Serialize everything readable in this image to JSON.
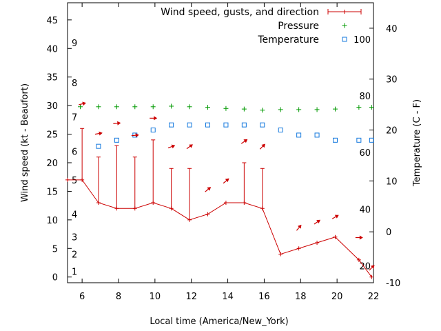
{
  "chart_data": {
    "type": "line",
    "xlabel": "Local time (America/New_York)",
    "ylabel_left": "Wind speed (kt - Beaufort)",
    "ylabel_right": "Temperature (C - F)",
    "xlim": [
      5.2,
      22
    ],
    "ylim_left": [
      -1,
      48
    ],
    "ylim_right": [
      -10,
      45
    ],
    "x_ticks": [
      6,
      8,
      10,
      12,
      14,
      16,
      18,
      20,
      22
    ],
    "y_ticks_left": [
      0,
      5,
      10,
      15,
      20,
      25,
      30,
      35,
      40,
      45
    ],
    "y_ticks_right": [
      -10,
      0,
      10,
      20,
      30,
      40
    ],
    "beaufort_labels": [
      {
        "label": "1",
        "speed": 1
      },
      {
        "label": "2",
        "speed": 4
      },
      {
        "label": "3",
        "speed": 7
      },
      {
        "label": "4",
        "speed": 11
      },
      {
        "label": "5",
        "speed": 17
      },
      {
        "label": "6",
        "speed": 22
      },
      {
        "label": "7",
        "speed": 28
      },
      {
        "label": "8",
        "speed": 34
      },
      {
        "label": "9",
        "speed": 41
      }
    ],
    "fahrenheit_labels": [
      {
        "label": "20",
        "celsius": -6.7
      },
      {
        "label": "40",
        "celsius": 4.4
      },
      {
        "label": "60",
        "celsius": 15.6
      },
      {
        "label": "80",
        "celsius": 26.7
      },
      {
        "label": "100",
        "celsius": 37.8
      }
    ],
    "legend": {
      "placement": "top-right",
      "wind": "Wind speed, gusts, and direction",
      "pressure": "Pressure",
      "temperature": "Temperature"
    },
    "colors": {
      "wind": "#cc0000",
      "pressure": "#009900",
      "temperature": "#1177dd"
    },
    "series": [
      {
        "name": "Wind speed, gusts, and direction",
        "x": [
          5.2,
          6,
          6.9,
          7.9,
          8.9,
          9.9,
          10.9,
          11.9,
          12.9,
          13.9,
          14.9,
          15.9,
          16.9,
          17.9,
          18.9,
          19.9,
          21.2,
          21.9
        ],
        "speed": [
          17,
          17,
          13,
          12,
          12,
          13,
          12,
          10,
          11,
          13,
          13,
          12,
          4,
          5,
          6,
          7,
          3,
          0
        ],
        "gust": [
          null,
          26,
          21,
          23,
          21,
          24,
          19,
          19,
          null,
          null,
          20,
          19,
          null,
          null,
          null,
          null,
          null,
          null
        ]
      },
      {
        "name": "Pressure",
        "x": [
          5.9,
          6.9,
          7.9,
          8.9,
          9.9,
          10.9,
          11.9,
          12.9,
          13.9,
          14.9,
          15.9,
          16.9,
          17.9,
          18.9,
          19.9,
          21.2,
          21.9
        ],
        "y": [
          29.8,
          29.8,
          29.8,
          29.8,
          29.8,
          29.9,
          29.8,
          29.7,
          29.5,
          29.4,
          29.2,
          29.3,
          29.3,
          29.3,
          29.4,
          29.7,
          29.7
        ]
      },
      {
        "name": "Temperature",
        "x": [
          6.9,
          7.9,
          8.9,
          9.9,
          10.9,
          11.9,
          12.9,
          13.9,
          14.9,
          15.9,
          16.9,
          17.9,
          18.9,
          19.9,
          21.2,
          21.9
        ],
        "y": [
          16.8,
          18,
          19,
          20,
          21,
          21,
          21,
          21,
          21,
          21,
          20,
          19,
          19,
          18,
          18,
          18
        ]
      }
    ],
    "wind_arrows": [
      {
        "x": 6.0,
        "speed": 30.3,
        "angle": -15
      },
      {
        "x": 6.9,
        "speed": 25.1,
        "angle": -10
      },
      {
        "x": 7.9,
        "speed": 26.9,
        "angle": -5
      },
      {
        "x": 8.9,
        "speed": 24.8,
        "angle": -5
      },
      {
        "x": 9.9,
        "speed": 27.8,
        "angle": 0
      },
      {
        "x": 10.9,
        "speed": 22.8,
        "angle": -20
      },
      {
        "x": 11.9,
        "speed": 22.8,
        "angle": -35
      },
      {
        "x": 12.9,
        "speed": 15.3,
        "angle": -40
      },
      {
        "x": 13.9,
        "speed": 16.8,
        "angle": -40
      },
      {
        "x": 14.9,
        "speed": 23.7,
        "angle": -35
      },
      {
        "x": 15.9,
        "speed": 22.8,
        "angle": -45
      },
      {
        "x": 17.9,
        "speed": 8.6,
        "angle": -50
      },
      {
        "x": 18.9,
        "speed": 9.6,
        "angle": -35
      },
      {
        "x": 19.9,
        "speed": 10.5,
        "angle": -30
      },
      {
        "x": 21.2,
        "speed": 6.9,
        "angle": 0
      },
      {
        "x": 21.9,
        "speed": 1.6,
        "angle": -45
      }
    ]
  }
}
